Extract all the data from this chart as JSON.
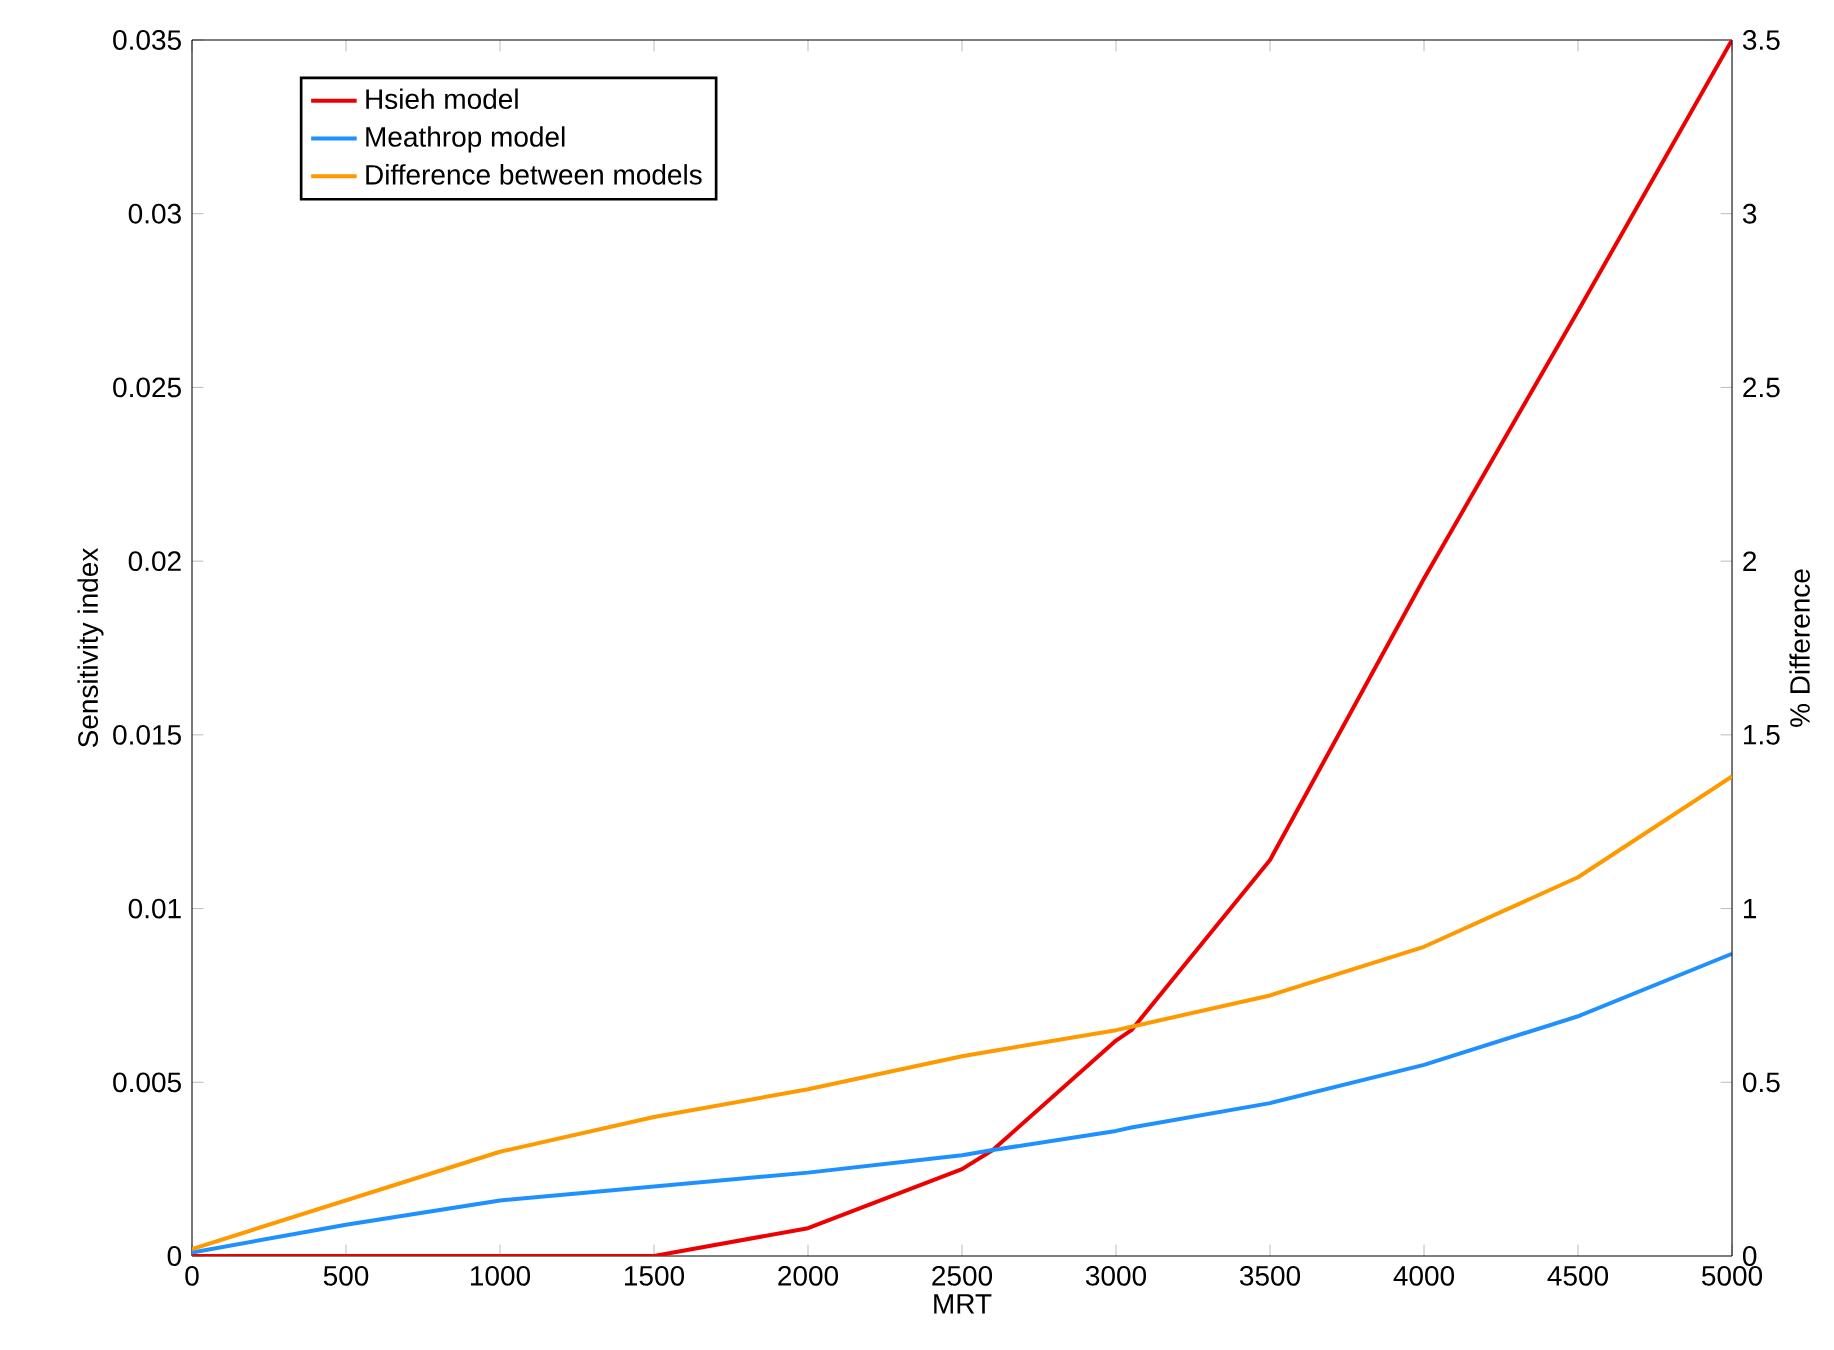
{
  "chart_data": {
    "type": "line",
    "xlabel": "MRT",
    "ylabel": "Sensitivity index",
    "y2label": "% Difference",
    "x": [
      0,
      500,
      1000,
      1500,
      2000,
      2500,
      2600,
      3000,
      3050,
      3500,
      4000,
      4500,
      5000
    ],
    "series": [
      {
        "name": "Hsieh model",
        "color": "#ee0000",
        "values": [
          0,
          0,
          0,
          0,
          0.0008,
          0.0025,
          0.00305,
          0.0062,
          0.0065,
          0.0114,
          0.0195,
          0.0272,
          0.035
        ]
      },
      {
        "name": "Meathrop model",
        "color": "#1e90ff",
        "values": [
          0.0001,
          0.0009,
          0.0016,
          0.002,
          0.0024,
          0.0029,
          0.00305,
          0.0036,
          0.0037,
          0.0044,
          0.0055,
          0.0069,
          0.0087
        ]
      },
      {
        "name": "Difference between models",
        "color": "#ff9900",
        "axis": "y2",
        "values": [
          0.02,
          0.16,
          0.3,
          0.4,
          0.48,
          0.575,
          0.59,
          0.65,
          0.66,
          0.75,
          0.89,
          1.09,
          1.38
        ]
      }
    ],
    "xlim": [
      0,
      5000
    ],
    "xticks": [
      0,
      500,
      1000,
      1500,
      2000,
      2500,
      3000,
      3500,
      4000,
      4500,
      5000
    ],
    "ylim": [
      0,
      0.035
    ],
    "yticks": [
      0,
      0.005,
      0.01,
      0.015,
      0.02,
      0.025,
      0.03,
      0.035
    ],
    "y2lim": [
      0,
      3.5
    ],
    "y2ticks": [
      0,
      0.5,
      1,
      1.5,
      2,
      2.5,
      3,
      3.5
    ],
    "legend": "top left",
    "grid": false,
    "marker": "none",
    "line_style": "solid"
  }
}
